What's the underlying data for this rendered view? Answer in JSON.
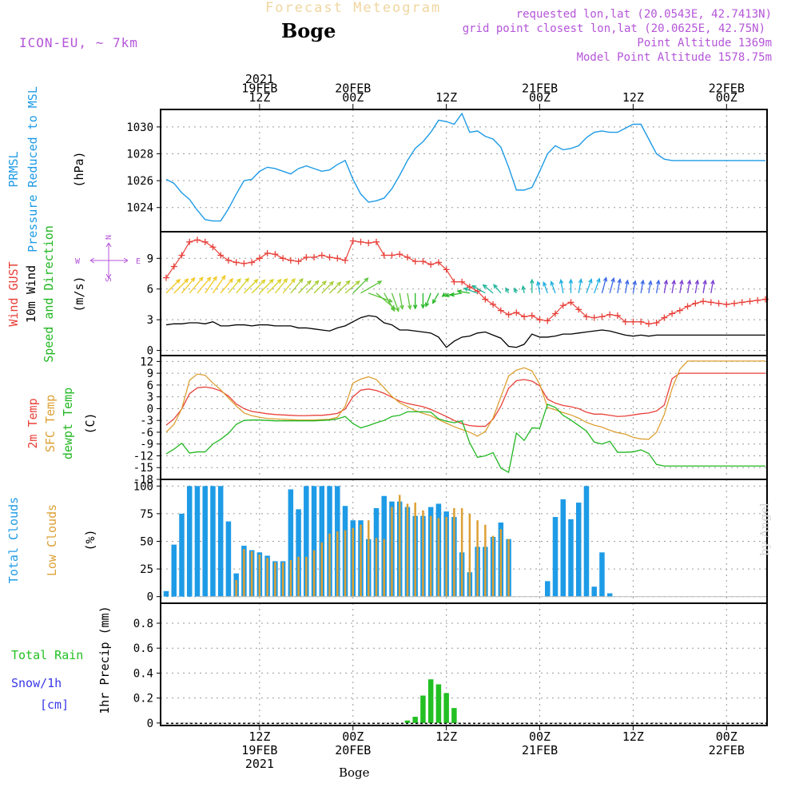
{
  "header": {
    "title": "Forecast Meteogram",
    "location": "Boge",
    "model": "ICON-EU, ~ 7km",
    "requested": "requested lon,lat (20.0543E, 42.7413N)",
    "grid_point": "grid point closest lon,lat (20.0625E, 42.75N)",
    "point_altitude": "Point Altitude 1369m",
    "model_altitude": "Model Point Altitude 1578.75m",
    "footer_location": "Boge",
    "credit": "by Angel"
  },
  "colors": {
    "pressure": "#1e9be6",
    "gust": "#e8413a",
    "wind": "#000000",
    "dir": "#22b722",
    "temp2m": "#e8413a",
    "sfctemp": "#dca034",
    "dewpt": "#22b722",
    "total_clouds": "#1e9be6",
    "low_clouds": "#dca034",
    "rain": "#22c022",
    "snow": "#3838e8",
    "header_violet": "#b455d8",
    "header_gold": "#f0d6a0"
  },
  "time_axis": {
    "top": [
      {
        "t": 12,
        "lines": [
          "2021",
          "19FEB",
          "12Z"
        ]
      },
      {
        "t": 24,
        "lines": [
          "20FEB",
          "00Z"
        ]
      },
      {
        "t": 36,
        "lines": [
          "12Z"
        ]
      },
      {
        "t": 48,
        "lines": [
          "21FEB",
          "00Z"
        ]
      },
      {
        "t": 60,
        "lines": [
          "12Z"
        ]
      },
      {
        "t": 72,
        "lines": [
          "22FEB",
          "00Z"
        ]
      }
    ],
    "bottom": [
      {
        "t": 12,
        "lines": [
          "12Z",
          "19FEB",
          "2021"
        ]
      },
      {
        "t": 24,
        "lines": [
          "00Z",
          "20FEB"
        ]
      },
      {
        "t": 36,
        "lines": [
          "12Z"
        ]
      },
      {
        "t": 48,
        "lines": [
          "00Z",
          "21FEB"
        ]
      },
      {
        "t": 60,
        "lines": [
          "12Z"
        ]
      },
      {
        "t": 72,
        "lines": [
          "00Z",
          "22FEB"
        ]
      }
    ]
  },
  "panels": {
    "pressure": {
      "labels": [
        {
          "text": "PRMSL",
          "color": "#1e9be6"
        },
        {
          "text": "Pressure Reduced to MSL",
          "color": "#1e9be6"
        }
      ],
      "unit": "(hPa)"
    },
    "wind": {
      "labels": [
        {
          "text": "Wind GUST",
          "color": "#e8413a"
        },
        {
          "text": "10m Wind",
          "color": "#000000"
        },
        {
          "text": "Speed and Direction",
          "color": "#22b722"
        }
      ],
      "unit": "(m/s)",
      "compass": {
        "n": "N",
        "s": "S",
        "w": "W",
        "e": "E"
      }
    },
    "temp": {
      "labels": [
        {
          "text": "2m Temp",
          "color": "#e8413a"
        },
        {
          "text": "SFC Temp",
          "color": "#dca034"
        },
        {
          "text": "dewpt Temp",
          "color": "#22b722"
        }
      ],
      "unit": "(C)"
    },
    "clouds": {
      "labels": [
        {
          "text": "Total Clouds",
          "color": "#1e9be6"
        },
        {
          "text": "Low Clouds",
          "color": "#dca034"
        }
      ],
      "unit": "(%)"
    },
    "precip": {
      "legend": [
        "Total Rain",
        "Snow/1h",
        "[cm]"
      ],
      "unit": "1hr Precip (mm)"
    }
  },
  "chart_data": [
    {
      "type": "line",
      "title": "Pressure Reduced to MSL",
      "ylabel": "(hPa)",
      "x_hours_from_19FEB_00Z": [
        0,
        1,
        2,
        3,
        4,
        5,
        6,
        7,
        8,
        9,
        10,
        11,
        12,
        13,
        14,
        15,
        16,
        17,
        18,
        19,
        20,
        21,
        22,
        23,
        24,
        25,
        26,
        27,
        28,
        29,
        30,
        31,
        32,
        33,
        34,
        35,
        36,
        37,
        38,
        39,
        40,
        41,
        42,
        43,
        44,
        45,
        46,
        47,
        48,
        49,
        50,
        51,
        52,
        53,
        54,
        55,
        56,
        57,
        58,
        59,
        60,
        61,
        62,
        63,
        64,
        65,
        66,
        67,
        68,
        69,
        70,
        71,
        72,
        73,
        74,
        75,
        76,
        77
      ],
      "yticks": [
        1024,
        1026,
        1028,
        1030
      ],
      "ylim": [
        1022.2,
        1031.3
      ],
      "series": [
        {
          "name": "PRMSL",
          "values": [
            1026.1,
            1025.8,
            1025.1,
            1024.6,
            1023.8,
            1023.1,
            1023.0,
            1023.0,
            1023.9,
            1025.0,
            1026.0,
            1026.1,
            1026.7,
            1027.0,
            1026.9,
            1026.7,
            1026.5,
            1026.9,
            1027.1,
            1026.9,
            1026.7,
            1026.8,
            1027.2,
            1027.5,
            1026.1,
            1025.0,
            1024.4,
            1024.5,
            1024.7,
            1025.4,
            1026.4,
            1027.5,
            1028.4,
            1028.9,
            1029.6,
            1030.5,
            1030.4,
            1030.2,
            1031.0,
            1029.6,
            1029.7,
            1029.3,
            1029.1,
            1028.5,
            1027.0,
            1025.3,
            1025.3,
            1025.5,
            1026.7,
            1028.0,
            1028.6,
            1028.3,
            1028.4,
            1028.6,
            1029.2,
            1029.6,
            1029.7,
            1029.6,
            1029.6,
            1029.9,
            1030.2,
            1030.2,
            1029.1,
            1028.0,
            1027.6,
            1027.5,
            1027.5,
            1027.5,
            1027.5,
            1027.5,
            1027.5,
            1027.5,
            1027.5,
            1027.5,
            1027.5,
            1027.5,
            1027.5,
            1027.5
          ]
        }
      ]
    },
    {
      "type": "line",
      "title": "Wind GUST / 10m Wind Speed and Direction",
      "ylabel": "(m/s)",
      "yticks": [
        0,
        3,
        6,
        9
      ],
      "ylim": [
        -0.5,
        11.6
      ],
      "series": [
        {
          "name": "Wind GUST",
          "values": [
            7.1,
            8.2,
            9.3,
            10.6,
            10.8,
            10.6,
            10.1,
            9.3,
            8.8,
            8.6,
            8.5,
            8.6,
            9.0,
            9.5,
            9.4,
            9.0,
            8.8,
            8.7,
            9.1,
            9.1,
            9.3,
            9.1,
            9.0,
            8.8,
            10.7,
            10.6,
            10.5,
            10.6,
            9.3,
            9.3,
            9.4,
            9.1,
            8.7,
            8.7,
            8.4,
            8.6,
            7.9,
            6.7,
            6.7,
            6.2,
            5.8,
            5.0,
            4.5,
            3.9,
            3.5,
            3.7,
            3.3,
            3.4,
            3.0,
            2.9,
            3.6,
            4.4,
            4.7,
            4.0,
            3.3,
            3.2,
            3.3,
            3.5,
            3.4,
            2.8,
            2.8,
            2.8,
            2.6,
            2.7,
            3.2,
            3.6,
            3.9,
            4.3,
            4.6,
            4.8,
            4.7,
            4.6,
            4.5,
            4.6,
            4.7,
            4.8,
            4.9,
            5.0
          ]
        },
        {
          "name": "10m Wind",
          "values": [
            2.5,
            2.6,
            2.6,
            2.7,
            2.7,
            2.6,
            2.8,
            2.4,
            2.4,
            2.5,
            2.5,
            2.4,
            2.5,
            2.5,
            2.4,
            2.4,
            2.4,
            2.2,
            2.2,
            2.1,
            2.0,
            1.9,
            2.2,
            2.4,
            2.8,
            3.2,
            3.4,
            3.3,
            2.7,
            2.5,
            2.0,
            2.0,
            1.9,
            1.8,
            1.7,
            1.3,
            0.3,
            0.9,
            1.3,
            1.4,
            1.7,
            1.8,
            1.5,
            1.2,
            0.4,
            0.3,
            0.6,
            1.6,
            1.3,
            1.3,
            1.4,
            1.6,
            1.6,
            1.7,
            1.8,
            1.9,
            2.0,
            1.9,
            1.7,
            1.5,
            1.4,
            1.5,
            1.4,
            1.5,
            1.5,
            1.5,
            1.5,
            1.5,
            1.5,
            1.5,
            1.5,
            1.5,
            1.5,
            1.5,
            1.5,
            1.5,
            1.5,
            1.5
          ]
        }
      ],
      "arrows_deg": [
        45,
        45,
        40,
        40,
        40,
        35,
        35,
        40,
        40,
        40,
        45,
        45,
        45,
        45,
        40,
        40,
        40,
        45,
        45,
        45,
        45,
        45,
        45,
        50,
        45,
        60,
        110,
        130,
        150,
        160,
        170,
        170,
        180,
        180,
        200,
        210,
        230,
        250,
        260,
        280,
        290,
        300,
        310,
        320,
        330,
        340,
        350,
        0,
        350,
        340,
        340,
        350,
        0,
        10,
        20,
        20,
        15,
        15,
        10,
        10,
        10,
        10,
        10,
        10,
        10,
        10,
        10,
        10,
        10,
        10,
        10,
        10,
        10,
        10,
        10,
        10,
        10,
        10
      ]
    },
    {
      "type": "line",
      "title": "2m Temp / SFC Temp / dewpt Temp",
      "ylabel": "(C)",
      "yticks": [
        -18,
        -15,
        -12,
        -9,
        -6,
        -3,
        0,
        3,
        6,
        9,
        12
      ],
      "ylim": [
        -18,
        13.5
      ],
      "series": [
        {
          "name": "2m Temp",
          "values": [
            -4.2,
            -2.6,
            -0.1,
            3.8,
            5.3,
            5.5,
            5.2,
            4.5,
            3.2,
            1.2,
            0.0,
            -0.7,
            -1.0,
            -1.3,
            -1.5,
            -1.6,
            -1.7,
            -1.8,
            -1.8,
            -1.7,
            -1.7,
            -1.5,
            -1.2,
            -0.1,
            3.0,
            4.7,
            5.0,
            4.6,
            3.9,
            2.9,
            1.9,
            1.3,
            0.9,
            0.5,
            -0.2,
            -1.1,
            -2.0,
            -3.0,
            -3.8,
            -4.3,
            -4.5,
            -4.5,
            -2.7,
            0.6,
            5.2,
            7.1,
            7.4,
            7.0,
            5.8,
            2.4,
            1.4,
            0.8,
            0.5,
            0.0,
            -0.9,
            -1.4,
            -1.4,
            -1.7,
            -2.0,
            -1.9,
            -1.6,
            -1.3,
            -1.1,
            -0.6,
            0.9,
            7.6,
            9.0,
            9.0,
            9.0,
            9.0,
            9.0,
            9.0,
            9.0,
            9.0,
            9.0,
            9.0,
            9.0,
            9.0
          ]
        },
        {
          "name": "SFC Temp",
          "values": [
            -6.0,
            -4.0,
            0.0,
            7.2,
            8.8,
            8.5,
            6.5,
            4.8,
            2.7,
            0.7,
            -1.1,
            -1.8,
            -2.2,
            -2.5,
            -2.6,
            -2.7,
            -2.8,
            -2.9,
            -2.9,
            -2.9,
            -2.8,
            -2.7,
            -2.2,
            0.6,
            6.5,
            7.5,
            8.1,
            7.4,
            5.3,
            3.1,
            1.5,
            0.5,
            -0.5,
            -1.2,
            -1.8,
            -2.8,
            -3.7,
            -4.6,
            -5.3,
            -6.0,
            -7.0,
            -5.8,
            -2.4,
            3.0,
            8.3,
            9.8,
            10.4,
            9.6,
            6.2,
            0.3,
            -0.3,
            -1.0,
            -1.6,
            -2.4,
            -3.5,
            -4.2,
            -4.7,
            -5.5,
            -6.1,
            -6.5,
            -7.3,
            -7.7,
            -7.8,
            -6.0,
            -1.5,
            5.1,
            10.0,
            12.1,
            12.1,
            12.1,
            12.1,
            12.1,
            12.1,
            12.1,
            12.1,
            12.1,
            12.1,
            12.1
          ]
        },
        {
          "name": "dewpt Temp",
          "values": [
            -11.5,
            -10.3,
            -8.8,
            -11.3,
            -11.0,
            -11.0,
            -9.0,
            -7.8,
            -6.3,
            -4.0,
            -3.0,
            -2.9,
            -2.9,
            -3.0,
            -3.1,
            -3.1,
            -3.1,
            -3.1,
            -3.1,
            -3.1,
            -3.0,
            -2.9,
            -2.6,
            -2.0,
            -3.8,
            -4.9,
            -4.3,
            -3.6,
            -3.0,
            -2.0,
            -1.7,
            -0.8,
            -0.8,
            -0.8,
            -0.9,
            -2.6,
            -3.2,
            -3.6,
            -3.1,
            -8.7,
            -12.4,
            -12.0,
            -11.2,
            -15.1,
            -16.2,
            -6.2,
            -8.1,
            -4.9,
            -5.0,
            1.1,
            0.3,
            -1.7,
            -2.9,
            -4.3,
            -5.7,
            -8.5,
            -9.0,
            -8.3,
            -11.1,
            -11.1,
            -11.0,
            -10.5,
            -11.4,
            -14.2,
            -14.6,
            -14.6,
            -14.6,
            -14.6,
            -14.6,
            -14.6,
            -14.6,
            -14.6,
            -14.6,
            -14.6,
            -14.6,
            -14.6,
            -14.6,
            -14.6
          ]
        }
      ]
    },
    {
      "type": "bar",
      "title": "Total Clouds / Low Clouds",
      "ylabel": "(%)",
      "yticks": [
        0,
        25,
        50,
        75,
        100
      ],
      "ylim": [
        -6,
        106
      ],
      "series": [
        {
          "name": "Total Clouds",
          "values": [
            5,
            47,
            75,
            100,
            100,
            100,
            100,
            100,
            68,
            21,
            46,
            42,
            40,
            37,
            32,
            32,
            97,
            79,
            100,
            100,
            100,
            100,
            100,
            82,
            69,
            69,
            52,
            80,
            91,
            86,
            86,
            81,
            73,
            73,
            81,
            84,
            77,
            72,
            40,
            22,
            45,
            45,
            54,
            67,
            52,
            0,
            0,
            0,
            0,
            14,
            72,
            88,
            70,
            85,
            100,
            9,
            40,
            3,
            0,
            0,
            0,
            0,
            0,
            0,
            0,
            0,
            0,
            0,
            0,
            0,
            0,
            0,
            0,
            0,
            0,
            0,
            0,
            0
          ]
        },
        {
          "name": "Low Clouds",
          "values": [
            0,
            0,
            0,
            0,
            0,
            0,
            0,
            0,
            0,
            15,
            43,
            41,
            38,
            35,
            31,
            31,
            33,
            36,
            36,
            42,
            49,
            57,
            59,
            60,
            62,
            65,
            69,
            53,
            52,
            81,
            92,
            84,
            85,
            78,
            73,
            71,
            72,
            80,
            80,
            75,
            69,
            65,
            55,
            61,
            52,
            0,
            0,
            0,
            0,
            0,
            0,
            0,
            0,
            0,
            0,
            0,
            0,
            0,
            0,
            0,
            0,
            0,
            0,
            0,
            0,
            0,
            0,
            0,
            0,
            0,
            0,
            0,
            0,
            0,
            0,
            0,
            0,
            0
          ]
        }
      ]
    },
    {
      "type": "bar",
      "title": "1hr Precip",
      "ylabel": "1hr Precip (mm)",
      "yticks": [
        0,
        0.2,
        0.4,
        0.6,
        0.8
      ],
      "ylim": [
        -0.02,
        0.96
      ],
      "series": [
        {
          "name": "Total Rain",
          "values": [
            0,
            0,
            0,
            0,
            0,
            0,
            0,
            0,
            0,
            0,
            0,
            0,
            0,
            0,
            0,
            0,
            0,
            0,
            0,
            0,
            0,
            0,
            0,
            0,
            0,
            0,
            0,
            0,
            0,
            0,
            0,
            0.02,
            0.05,
            0.22,
            0.35,
            0.31,
            0.24,
            0.12,
            0,
            0,
            0,
            0,
            0,
            0,
            0,
            0,
            0,
            0,
            0,
            0,
            0,
            0,
            0,
            0,
            0,
            0,
            0,
            0,
            0,
            0,
            0,
            0,
            0,
            0,
            0,
            0,
            0,
            0,
            0,
            0,
            0,
            0,
            0,
            0,
            0,
            0,
            0,
            0
          ]
        }
      ]
    }
  ]
}
